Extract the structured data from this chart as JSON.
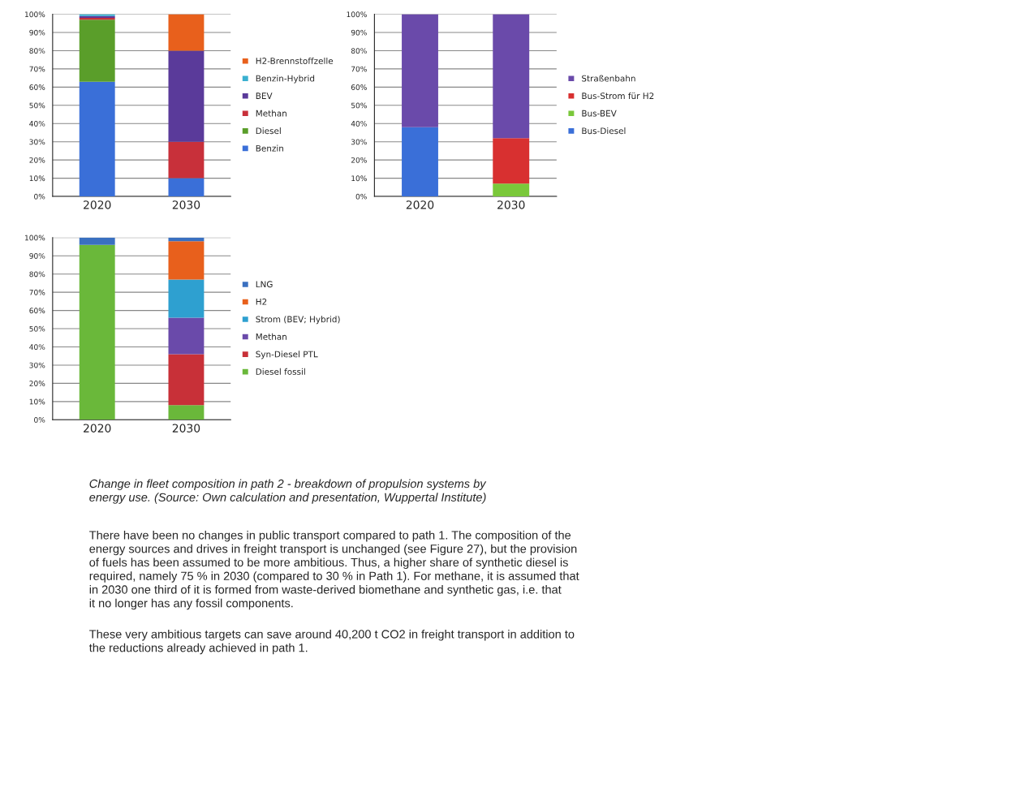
{
  "chart_data": [
    {
      "type": "bar",
      "stacked": true,
      "categories": [
        "2020",
        "2030"
      ],
      "ylim": [
        0,
        100
      ],
      "grid": "y",
      "legend": "right",
      "yticks": [
        {
          "value": 0,
          "label": "0%"
        },
        {
          "value": 10,
          "label": "10%"
        },
        {
          "value": 20,
          "label": "20%"
        },
        {
          "value": 30,
          "label": "30%"
        },
        {
          "value": 40,
          "label": "40%"
        },
        {
          "value": 50,
          "label": "50%"
        },
        {
          "value": 60,
          "label": "60%"
        },
        {
          "value": 70,
          "label": "70%"
        },
        {
          "value": 80,
          "label": "80%"
        },
        {
          "value": 90,
          "label": "90%"
        },
        {
          "value": 100,
          "label": "100%"
        }
      ],
      "series": [
        {
          "name": "Benzin",
          "color": "#3a6fd8",
          "values": [
            63,
            10
          ]
        },
        {
          "name": "Diesel",
          "color": "#5a9e2a",
          "values": [
            34,
            0
          ]
        },
        {
          "name": "Methan",
          "color": "#c8303a",
          "values": [
            1,
            20
          ]
        },
        {
          "name": "BEV",
          "color": "#5a3a9a",
          "values": [
            1,
            50
          ]
        },
        {
          "name": "Benzin-Hybrid",
          "color": "#3ab0d0",
          "values": [
            1,
            0
          ]
        },
        {
          "name": "H2-Brennstoffzelle",
          "color": "#e8601c",
          "values": [
            0,
            20
          ]
        }
      ]
    },
    {
      "type": "bar",
      "stacked": true,
      "categories": [
        "2020",
        "2030"
      ],
      "ylim": [
        0,
        100
      ],
      "grid": "y",
      "legend": "right",
      "yticks": [
        {
          "value": 0,
          "label": "0%"
        },
        {
          "value": 10,
          "label": "10%"
        },
        {
          "value": 20,
          "label": "20%"
        },
        {
          "value": 30,
          "label": "30%"
        },
        {
          "value": 40,
          "label": "40%"
        },
        {
          "value": 50,
          "label": "50%"
        },
        {
          "value": 60,
          "label": "60%"
        },
        {
          "value": 70,
          "label": "70%"
        },
        {
          "value": 80,
          "label": "80%"
        },
        {
          "value": 90,
          "label": "90%"
        },
        {
          "value": 100,
          "label": "100%"
        }
      ],
      "series": [
        {
          "name": "Bus-Diesel",
          "color": "#3a6fd8",
          "values": [
            38,
            0
          ]
        },
        {
          "name": "Bus-BEV",
          "color": "#7ac83a",
          "values": [
            0,
            7
          ]
        },
        {
          "name": "Bus-Strom für H2",
          "color": "#d83030",
          "values": [
            0,
            25
          ]
        },
        {
          "name": "Straßenbahn",
          "color": "#6a4aaa",
          "values": [
            62,
            68
          ]
        }
      ]
    },
    {
      "type": "bar",
      "stacked": true,
      "categories": [
        "2020",
        "2030"
      ],
      "ylim": [
        0,
        100
      ],
      "grid": "y",
      "legend": "right",
      "yticks": [
        {
          "value": 0,
          "label": "0%"
        },
        {
          "value": 10,
          "label": "10%"
        },
        {
          "value": 20,
          "label": "20%"
        },
        {
          "value": 30,
          "label": "30%"
        },
        {
          "value": 40,
          "label": "40%"
        },
        {
          "value": 50,
          "label": "50%"
        },
        {
          "value": 60,
          "label": "60%"
        },
        {
          "value": 70,
          "label": "70%"
        },
        {
          "value": 80,
          "label": "80%"
        },
        {
          "value": 90,
          "label": "90%"
        },
        {
          "value": 100,
          "label": "100%"
        }
      ],
      "series": [
        {
          "name": "Diesel fossil",
          "color": "#6ab83a",
          "values": [
            96,
            8
          ]
        },
        {
          "name": "Syn-Diesel PTL",
          "color": "#c83038",
          "values": [
            0,
            28
          ]
        },
        {
          "name": "Methan",
          "color": "#6a4aaa",
          "values": [
            0,
            20
          ]
        },
        {
          "name": "Strom (BEV; Hybrid)",
          "color": "#2ea0d0",
          "values": [
            0,
            21
          ]
        },
        {
          "name": "H2",
          "color": "#e8601c",
          "values": [
            0,
            21
          ]
        },
        {
          "name": "LNG",
          "color": "#3a70c0",
          "values": [
            4,
            2
          ]
        }
      ],
      "annotations": [
        "Change in fleet composition in path 2 - breakdown of propulsion systems by\nenergy use. (Source: Own calculation and presentation, Wuppertal Institute)",
        "There have been no changes in public transport compared to path 1. The composition of the\nenergy sources and drives in freight transport is unchanged (see Figure 27), but the provision\nof fuels has been assumed to be more ambitious. Thus, a higher share of synthetic diesel is\nrequired, namely 75 % in 2030 (compared to 30 % in Path 1). For methane, it is assumed that\nin 2030 one third of it is formed from waste-derived biomethane and synthetic gas, i.e. that\nit no longer has any fossil components.",
        "These very ambitious targets can save around 40,200 t CO2 in freight transport in addition to\nthe reductions already achieved in path 1."
      ]
    }
  ]
}
